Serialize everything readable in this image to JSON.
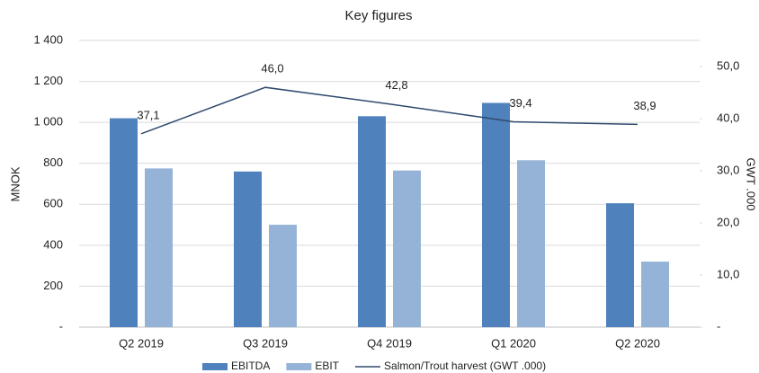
{
  "chart_data": {
    "type": "bar_line",
    "title": "Key figures",
    "y_label": "MNOK",
    "y2_label": "GWT .000",
    "categories": [
      "Q2 2019",
      "Q3 2019",
      "Q4 2019",
      "Q1 2020",
      "Q2 2020"
    ],
    "series": [
      {
        "name": "EBITDA",
        "color": "#4f81bd",
        "type": "bar",
        "values": [
          1020,
          760,
          1030,
          1095,
          605
        ]
      },
      {
        "name": "EBIT",
        "color": "#95b3d7",
        "type": "bar",
        "values": [
          775,
          500,
          765,
          815,
          320
        ]
      },
      {
        "name": "Salmon/Trout harvest (GWT .000)",
        "color": "#2f4a6d",
        "type": "line",
        "axis": "y2",
        "values": [
          37.1,
          46.0,
          42.8,
          39.4,
          38.9
        ],
        "value_labels": [
          "37,1",
          "46,0",
          "42,8",
          "39,4",
          "38,9"
        ]
      }
    ],
    "ylim": [
      0,
      1400
    ],
    "yticks": [
      {
        "value": 0,
        "label": "-"
      },
      200,
      400,
      600,
      800,
      {
        "value": 1000,
        "label": "1 000"
      },
      {
        "value": 1200,
        "label": "1 200"
      },
      {
        "value": 1400,
        "label": "1 400"
      }
    ],
    "y2lim": [
      0,
      55
    ],
    "y2ticks": [
      {
        "value": 0,
        "label": "-"
      },
      {
        "value": 10,
        "label": "10,0"
      },
      {
        "value": 20,
        "label": "20,0"
      },
      {
        "value": 30,
        "label": "30,0"
      },
      {
        "value": 40,
        "label": "40,0"
      },
      {
        "value": 50,
        "label": "50,0"
      }
    ],
    "grid": true,
    "legend": "bottom"
  }
}
